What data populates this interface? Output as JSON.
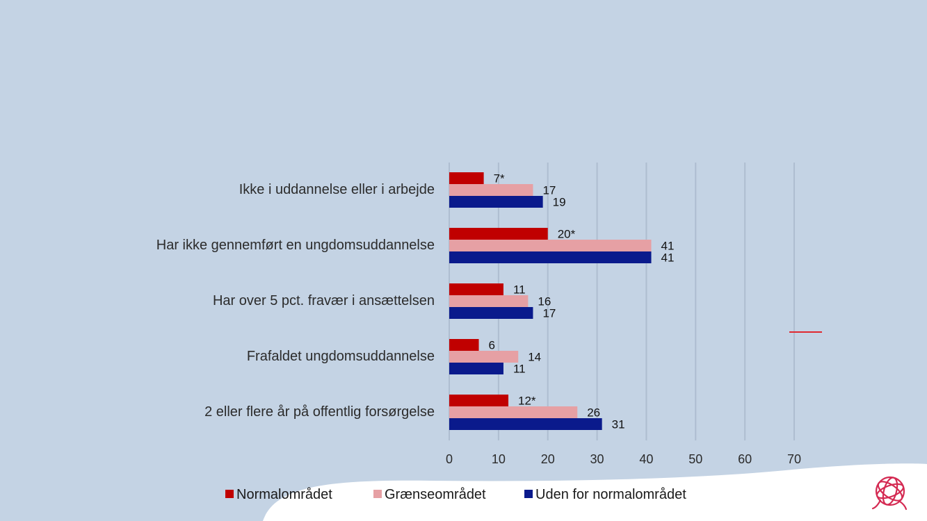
{
  "chart_data": {
    "type": "bar",
    "orientation": "horizontal",
    "categories": [
      "Ikke i uddannelse eller i arbejde",
      "Har ikke gennemført en ungdomsuddannelse",
      "Har over 5 pct. fravær i ansættelsen",
      "Frafaldet ungdomsuddannelse",
      "2 eller flere år på offentlig forsørgelse"
    ],
    "series": [
      {
        "name": "Normalområdet",
        "color": "#c00000",
        "values": [
          7,
          20,
          11,
          6,
          12
        ],
        "labels": [
          "7*",
          "20*",
          "11",
          "6",
          "12*"
        ]
      },
      {
        "name": "Grænseområdet",
        "color": "#e6a0a4",
        "values": [
          17,
          41,
          16,
          14,
          26
        ],
        "labels": [
          "17",
          "41",
          "16",
          "14",
          "26"
        ]
      },
      {
        "name": "Uden for normalområdet",
        "color": "#0a1a8c",
        "values": [
          19,
          41,
          17,
          11,
          31
        ],
        "labels": [
          "19",
          "41",
          "17",
          "11",
          "31"
        ]
      }
    ],
    "xticks": [
      "0",
      "10",
      "20",
      "30",
      "40",
      "50",
      "60",
      "70"
    ],
    "xlim": [
      0,
      70
    ],
    "grid": true,
    "legend_position": "bottom",
    "title": "",
    "xlabel": "",
    "ylabel": ""
  },
  "colors": {
    "background": "#c4d3e4",
    "gridline": "#aebdd0",
    "wave": "#ffffff",
    "accent_line": "#e0282f",
    "logo": "#d42a52"
  },
  "logo_icon": "yarn-ball-icon"
}
